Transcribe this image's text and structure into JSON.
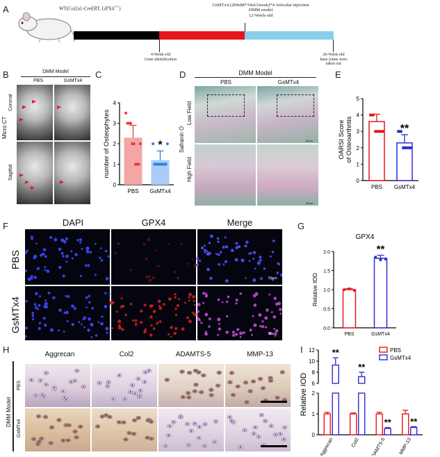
{
  "panelA": {
    "label": "A",
    "mouse_label": "WT(Col2a1-CreERT, GPX4",
    "mouse_label_sup": "+/+",
    "mouse_label_end": ")",
    "top_line1": "GsMTx4 (200uM*10ul/2week)*4 Articular injection",
    "top_line2": "DMM model",
    "top_line3": "12-Week-old",
    "bottom_left_line1": "4-Week-old",
    "bottom_left_line2": "Gene identification",
    "bottom_right_line1": "20-Week-old",
    "bottom_right_line2": "knee joints were",
    "bottom_right_line3": "taken out",
    "timeline_colors": [
      "#000000",
      "#e8141c",
      "#87cfe8"
    ]
  },
  "panelB": {
    "label": "B",
    "header": "DMM Model",
    "col_pbs": "PBS",
    "col_gsmtx4": "GsMTx4",
    "row_coronal": "Coronal",
    "row_sagittal": "Sagittal",
    "side_label": "Micro CT"
  },
  "panelC": {
    "label": "C",
    "chart_data": {
      "type": "bar",
      "categories": [
        "PBS",
        "GsMTx4"
      ],
      "values": [
        2.3,
        1.2
      ],
      "errors": [
        0.6,
        0.45
      ],
      "points": [
        [
          3.5,
          3.0,
          3.0,
          3.0,
          2.0,
          2.0,
          1.0,
          1.0,
          1.0,
          2.0
        ],
        [
          2.0,
          1.0,
          1.0,
          1.0,
          1.0,
          1.0,
          1.0,
          1.0,
          1.0,
          2.0
        ]
      ],
      "ylabel": "number of Osteophytes",
      "ylim": [
        0,
        4
      ],
      "yticks": [
        "0",
        "1",
        "2",
        "3",
        "4"
      ],
      "significance": [
        "",
        "*"
      ],
      "colors": [
        "#f4a6a6",
        "#a9cdf5"
      ],
      "point_colors": [
        "#e63a3a",
        "#2f7fe6"
      ]
    }
  },
  "panelD": {
    "label": "D",
    "header": "DMM Model",
    "col_pbs": "PBS",
    "col_gsmtx4": "GsMTx4",
    "row_low": "Low Field",
    "row_high": "High Field",
    "stain": "Safranin O",
    "scale1": "50um",
    "scale2": "50um"
  },
  "panelE": {
    "label": "E",
    "chart_data": {
      "type": "bar",
      "categories": [
        "PBS",
        "GsMTx4"
      ],
      "values": [
        3.6,
        2.3
      ],
      "errors": [
        0.45,
        0.5
      ],
      "points": [
        [
          4.0,
          4.0,
          3.0,
          3.0,
          3.0,
          3.0
        ],
        [
          3.0,
          3.0,
          2.0,
          2.0,
          2.0,
          2.0
        ]
      ],
      "ylabel": "OARSI Score\nof Osteoarthritis",
      "ylabel_lines": [
        "OARSI Score",
        "of Osteoarthritis"
      ],
      "ylim": [
        0,
        5
      ],
      "yticks": [
        "0",
        "1",
        "2",
        "3",
        "4",
        "5"
      ],
      "significance": [
        "",
        "**"
      ],
      "colors": [
        "#e8141c",
        "#2b2bd6"
      ]
    }
  },
  "panelF": {
    "label": "F",
    "col_dapi": "DAPI",
    "col_gpx4": "GPX4",
    "col_merge": "Merge",
    "row_pbs": "PBS",
    "row_gsmtx4": "GsMTx4",
    "scale1": "50um",
    "scale2": "50um"
  },
  "panelG": {
    "label": "G",
    "chart_data": {
      "type": "bar",
      "title": "GPX4",
      "categories": [
        "PBS",
        "GsMTx4"
      ],
      "values": [
        1.0,
        1.82
      ],
      "errors": [
        0.03,
        0.08
      ],
      "points": [
        [
          1.0,
          1.02,
          0.98
        ],
        [
          1.85,
          1.78,
          1.8
        ]
      ],
      "ylabel": "Relative IOD",
      "ylim": [
        0,
        2.0
      ],
      "yticks": [
        "0.0",
        "0.5",
        "1.0",
        "1.5",
        "2.0"
      ],
      "significance": [
        "",
        "**"
      ],
      "colors": [
        "#e8141c",
        "#2b2bd6"
      ]
    }
  },
  "panelH": {
    "label": "H",
    "side_label": "DMM Model",
    "row_pbs": "PBS",
    "row_gsmtx4": "GsMTx4",
    "columns": [
      "Aggrecan",
      "Col2",
      "ADAMTS-5",
      "MMP-13"
    ]
  },
  "panelI": {
    "label": "I",
    "chart_data": {
      "type": "bar",
      "categories": [
        "Aggrecan",
        "Col2",
        "ADAMTS-5",
        "MMP-13"
      ],
      "series": [
        {
          "name": "PBS",
          "values": [
            1.0,
            1.0,
            1.0,
            1.0
          ],
          "errors": [
            0.08,
            0.05,
            0.08,
            0.18
          ],
          "color": "#e8141c"
        },
        {
          "name": "GsMTx4",
          "values": [
            9.3,
            7.2,
            0.3,
            0.35
          ],
          "errors": [
            1.3,
            0.8,
            0.05,
            0.04
          ],
          "color": "#2b2bd6"
        }
      ],
      "ylabel": "Relative IOD",
      "axis_break": [
        2,
        6
      ],
      "yticks_lower": [
        "0",
        "1",
        "2"
      ],
      "yticks_upper": [
        "6",
        "8",
        "10",
        "12"
      ],
      "significance_gsmtx4": [
        "**",
        "**",
        "**",
        "**"
      ]
    }
  }
}
